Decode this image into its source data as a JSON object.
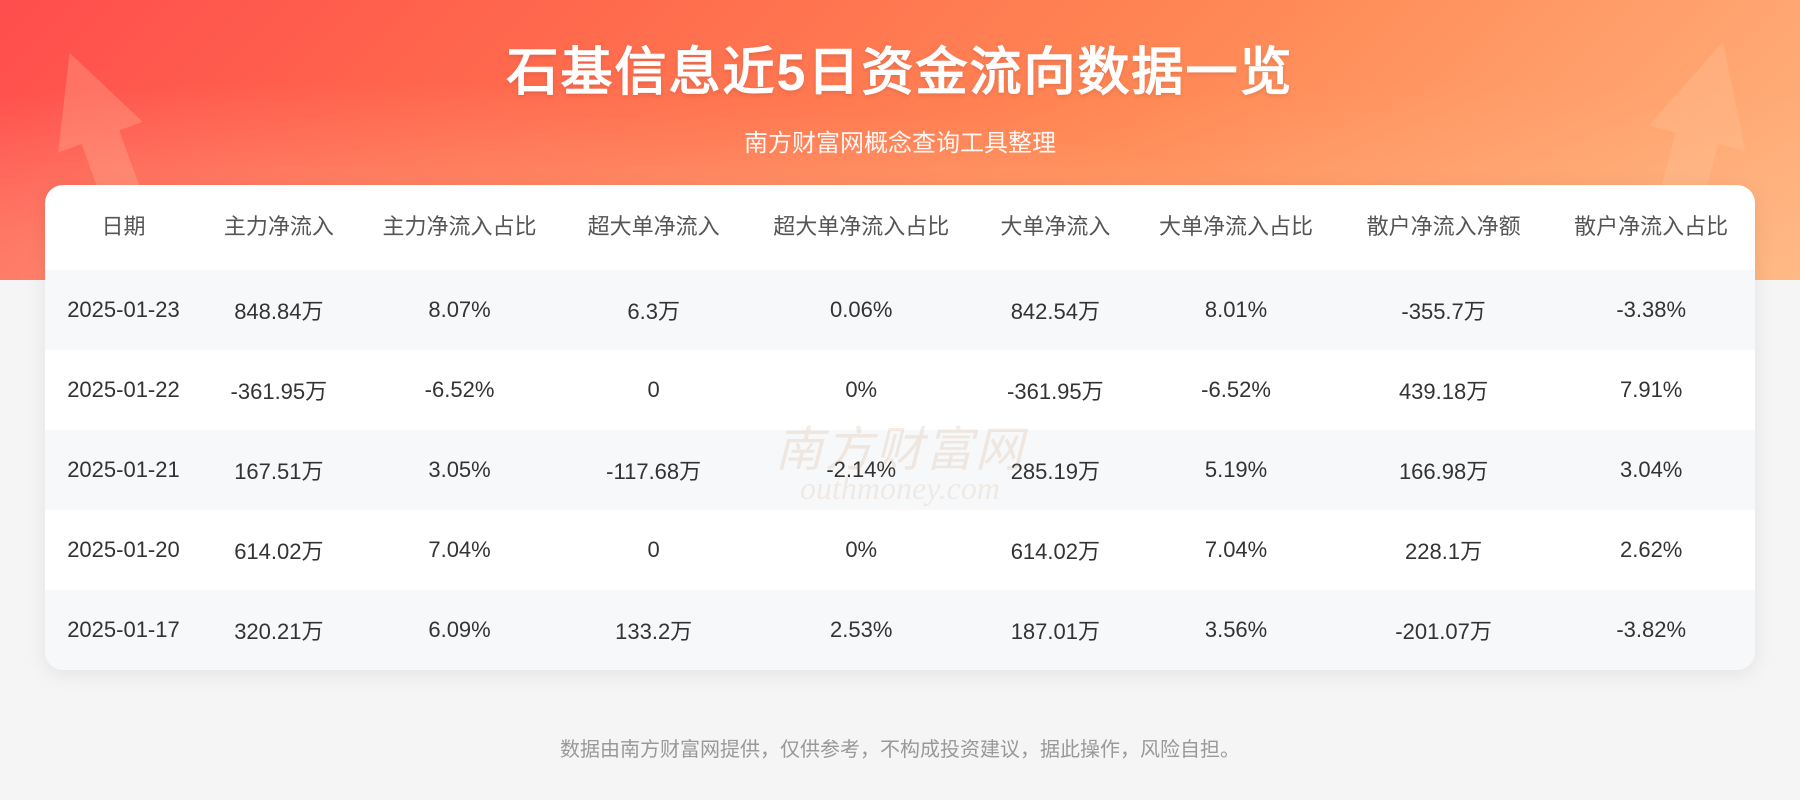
{
  "header": {
    "title": "石基信息近5日资金流向数据一览",
    "subtitle": "南方财富网概念查询工具整理",
    "background_gradient": [
      "#ff4d4d",
      "#ff6b4d",
      "#ff8855",
      "#ffb580"
    ],
    "title_color": "#ffffff",
    "title_fontsize": 52,
    "subtitle_fontsize": 24
  },
  "table": {
    "type": "table",
    "background_color": "#ffffff",
    "border_radius": 18,
    "header_text_color": "#555555",
    "cell_text_color": "#333333",
    "row_stripe_color": "#f7f8fa",
    "header_fontsize": 22,
    "cell_fontsize": 22,
    "columns": [
      "日期",
      "主力净流入",
      "主力净流入占比",
      "超大单净流入",
      "超大单净流入占比",
      "大单净流入",
      "大单净流入占比",
      "散户净流入净额",
      "散户净流入占比"
    ],
    "rows": [
      [
        "2025-01-23",
        "848.84万",
        "8.07%",
        "6.3万",
        "0.06%",
        "842.54万",
        "8.01%",
        "-355.7万",
        "-3.38%"
      ],
      [
        "2025-01-22",
        "-361.95万",
        "-6.52%",
        "0",
        "0%",
        "-361.95万",
        "-6.52%",
        "439.18万",
        "7.91%"
      ],
      [
        "2025-01-21",
        "167.51万",
        "3.05%",
        "-117.68万",
        "-2.14%",
        "285.19万",
        "5.19%",
        "166.98万",
        "3.04%"
      ],
      [
        "2025-01-20",
        "614.02万",
        "7.04%",
        "0",
        "0%",
        "614.02万",
        "7.04%",
        "228.1万",
        "2.62%"
      ],
      [
        "2025-01-17",
        "320.21万",
        "6.09%",
        "133.2万",
        "2.53%",
        "187.01万",
        "3.56%",
        "-201.07万",
        "-3.82%"
      ]
    ]
  },
  "watermark": {
    "text_main": "南方财富网",
    "text_sub": "outhmoney.com",
    "color": "rgba(200,150,100,0.18)"
  },
  "footer": {
    "text": "数据由南方财富网提供，仅供参考，不构成投资建议，据此操作，风险自担。",
    "color": "#999999",
    "fontsize": 20
  }
}
